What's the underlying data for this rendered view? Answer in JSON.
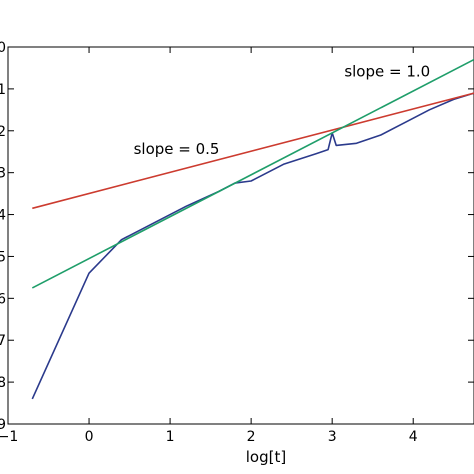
{
  "chart_data": {
    "type": "line",
    "title": "",
    "xlabel": "log[t]",
    "ylabel": "",
    "xlim": [
      -1,
      4.75
    ],
    "ylim": [
      -9,
      0
    ],
    "x_ticks": [
      -1,
      0,
      1,
      2,
      3,
      4
    ],
    "x_tick_labels": [
      "−1",
      "0",
      "1",
      "2",
      "3",
      "4"
    ],
    "y_ticks": [
      0,
      -1,
      -2,
      -3,
      -4,
      -5,
      -6,
      -7,
      -8,
      -9
    ],
    "y_tick_labels": [
      "0",
      "1",
      "2",
      "3",
      "4",
      "5",
      "6",
      "7",
      "8",
      "9"
    ],
    "grid": false,
    "series": [
      {
        "color": "#2b3a8c",
        "x": [
          -0.7,
          0.0,
          0.4,
          0.8,
          1.2,
          1.6,
          1.8,
          2.0,
          2.4,
          2.8,
          2.95,
          3.0,
          3.05,
          3.3,
          3.6,
          3.9,
          4.2,
          4.5,
          4.75
        ],
        "y": [
          -8.4,
          -5.4,
          -4.6,
          -4.2,
          -3.8,
          -3.45,
          -3.25,
          -3.2,
          -2.8,
          -2.55,
          -2.45,
          -2.05,
          -2.35,
          -2.3,
          -2.1,
          -1.8,
          -1.5,
          -1.25,
          -1.1
        ]
      },
      {
        "color": "#cc3b2f",
        "x": [
          -0.7,
          4.75
        ],
        "y": [
          -3.85,
          -1.1
        ]
      },
      {
        "color": "#1f9e6a",
        "x": [
          -0.7,
          4.75
        ],
        "y": [
          -5.75,
          -0.3
        ]
      }
    ],
    "annotations": [
      {
        "text": "slope = 1.0",
        "x": 3.15,
        "y": -0.7
      },
      {
        "text": "slope = 0.5",
        "x": 0.55,
        "y": -2.55
      }
    ]
  }
}
